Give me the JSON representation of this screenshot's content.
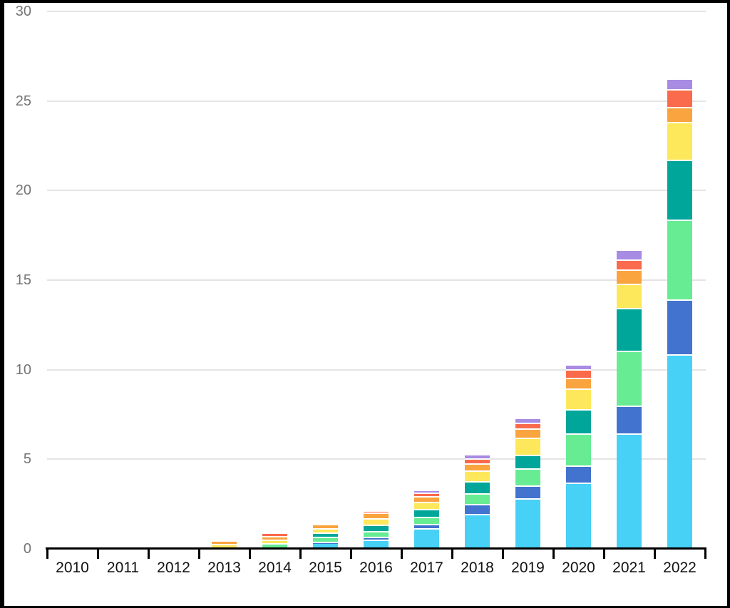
{
  "chart_data": {
    "type": "bar",
    "stacked": true,
    "title": "",
    "xlabel": "",
    "ylabel": "",
    "legend": "none",
    "grid": "horizontal",
    "ylim": [
      0,
      30
    ],
    "yticks": [
      0,
      5,
      10,
      15,
      20,
      25,
      30
    ],
    "y_tick_labels": [
      "0",
      "5",
      "10",
      "15",
      "20",
      "25",
      "30"
    ],
    "categories": [
      "2010",
      "2011",
      "2012",
      "2013",
      "2014",
      "2015",
      "2016",
      "2017",
      "2018",
      "2019",
      "2020",
      "2021",
      "2022"
    ],
    "series": [
      {
        "name": "sky-blue",
        "color": "#47d1f7",
        "values": [
          0,
          0,
          0,
          0,
          0,
          0.2,
          0.35,
          1.0,
          1.8,
          2.65,
          3.55,
          6.3,
          10.7
        ]
      },
      {
        "name": "royal-blue",
        "color": "#4273ce",
        "values": [
          0,
          0,
          0,
          0,
          0,
          0.05,
          0.15,
          0.25,
          0.55,
          0.75,
          0.95,
          1.55,
          3.05
        ]
      },
      {
        "name": "light-green",
        "color": "#67ec94",
        "values": [
          0,
          0,
          0,
          0,
          0.15,
          0.25,
          0.35,
          0.4,
          0.6,
          0.95,
          1.8,
          3.05,
          4.45
        ]
      },
      {
        "name": "teal",
        "color": "#00a699",
        "values": [
          0,
          0,
          0,
          0,
          0,
          0.25,
          0.35,
          0.4,
          0.65,
          0.75,
          1.35,
          2.4,
          3.35
        ]
      },
      {
        "name": "yellow",
        "color": "#fde85c",
        "values": [
          0,
          0,
          0,
          0.1,
          0.2,
          0.25,
          0.35,
          0.4,
          0.6,
          0.95,
          1.15,
          1.35,
          2.1
        ]
      },
      {
        "name": "orange",
        "color": "#f9a43e",
        "values": [
          0,
          0,
          0,
          0.2,
          0.2,
          0.25,
          0.3,
          0.35,
          0.4,
          0.5,
          0.6,
          0.8,
          0.85
        ]
      },
      {
        "name": "red-orange",
        "color": "#f96b4c",
        "values": [
          0,
          0,
          0,
          0,
          0.2,
          0,
          0.15,
          0.2,
          0.3,
          0.35,
          0.45,
          0.55,
          1.0
        ]
      },
      {
        "name": "purple",
        "color": "#a88be3",
        "values": [
          0,
          0,
          0,
          0,
          0,
          0,
          0,
          0.15,
          0.25,
          0.25,
          0.3,
          0.55,
          0.6
        ]
      }
    ],
    "bar_totals": [
      0,
      0,
      0,
      0.3,
      0.75,
      1.25,
      2.0,
      3.15,
      5.15,
      7.15,
      10.15,
      16.55,
      26.1
    ]
  },
  "colors": {
    "background": "#ffffff",
    "frame_border": "#000000",
    "gridline": "#e4e4e4",
    "axis": "#000000",
    "y_label_text": "#757575",
    "x_label_text": "#111111",
    "segment_separator": "#ffffff"
  }
}
